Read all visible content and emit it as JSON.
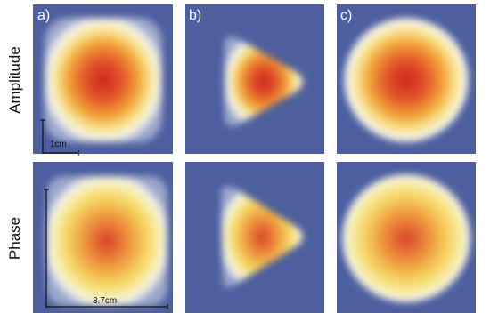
{
  "panels": [
    {
      "label": "a)"
    },
    {
      "label": "b)"
    },
    {
      "label": "c)"
    }
  ],
  "rows": [
    {
      "label": "Amplitude"
    },
    {
      "label": "Phase"
    }
  ],
  "scale_bars": [
    {
      "label": "1cm"
    },
    {
      "label": "3.7cm"
    }
  ]
}
